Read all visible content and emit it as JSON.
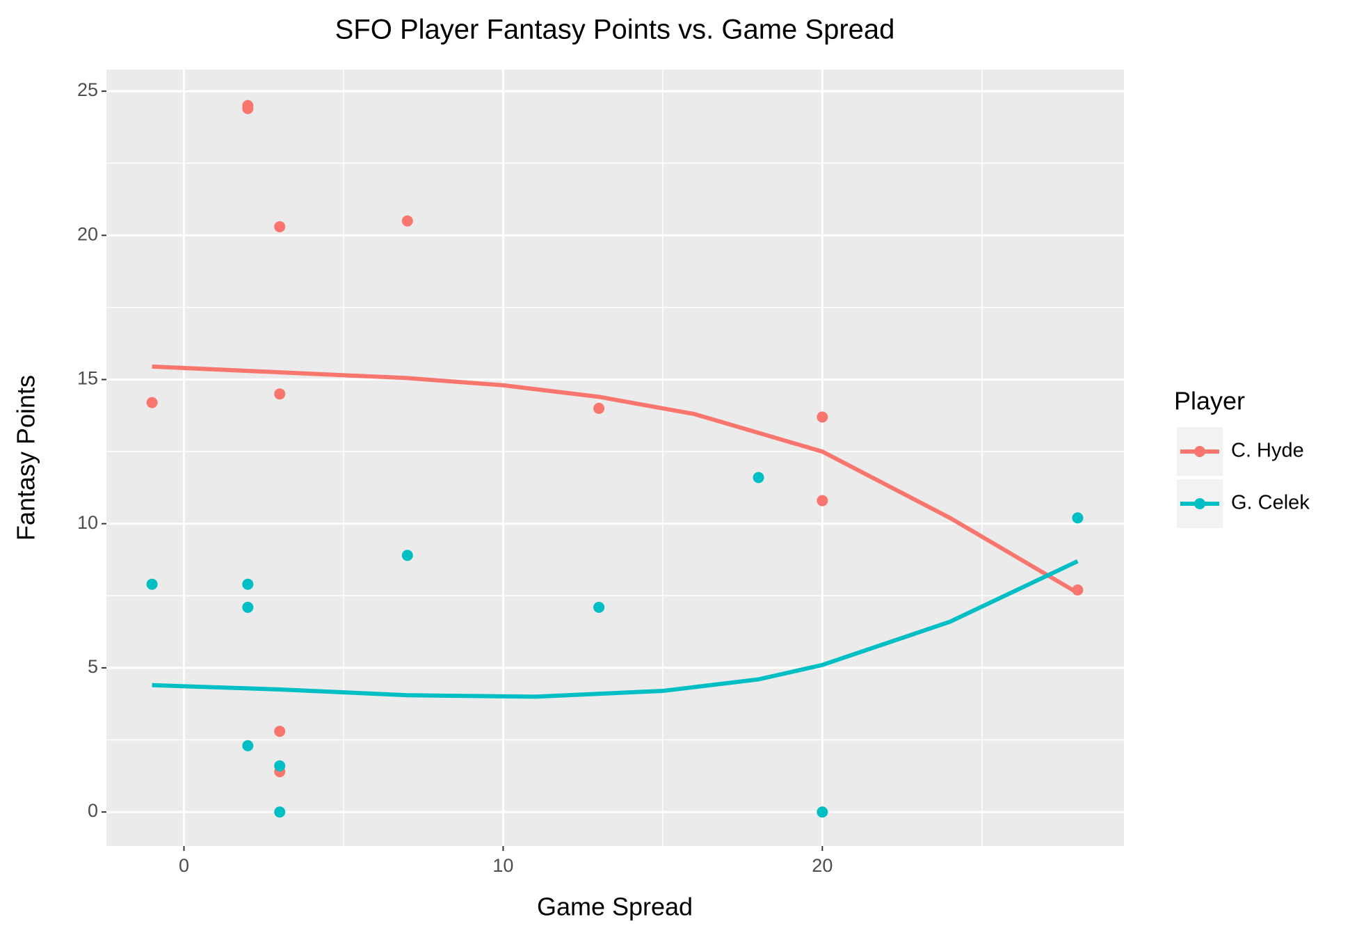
{
  "chart_data": {
    "type": "scatter",
    "title": "SFO Player Fantasy Points vs. Game Spread",
    "x_label": "Game Spread",
    "y_label": "Fantasy Points",
    "legend_title": "Player",
    "xlim": [
      -2.43,
      29.45
    ],
    "ylim": [
      -1.18,
      25.75
    ],
    "xticks": [
      0,
      10,
      20
    ],
    "yticks": [
      0,
      5,
      10,
      15,
      20,
      25
    ],
    "grid": true,
    "series": [
      {
        "name": "C. Hyde",
        "color": "#F8766D",
        "x": [
          -1,
          2,
          2,
          3,
          3,
          3,
          3,
          7,
          13,
          20,
          20,
          28
        ],
        "values": [
          14.2,
          24.5,
          24.4,
          20.3,
          14.5,
          2.8,
          1.4,
          20.5,
          14,
          13.7,
          10.8,
          7.7
        ],
        "trend_x": [
          -1,
          3,
          7,
          10,
          13,
          16,
          20,
          24,
          28
        ],
        "trend_values": [
          15.45,
          15.25,
          15.05,
          14.8,
          14.4,
          13.8,
          12.5,
          10.2,
          7.6
        ]
      },
      {
        "name": "G. Celek",
        "color": "#00BFC4",
        "x": [
          -1,
          2,
          2,
          2,
          3,
          3,
          7,
          13,
          18,
          20,
          28
        ],
        "values": [
          7.9,
          7.9,
          7.1,
          2.3,
          1.6,
          0,
          8.9,
          7.1,
          11.6,
          0,
          10.2
        ],
        "trend_x": [
          -1,
          3,
          7,
          11,
          15,
          18,
          20,
          24,
          28
        ],
        "trend_values": [
          4.4,
          4.25,
          4.05,
          4.0,
          4.2,
          4.6,
          5.1,
          6.6,
          8.7
        ]
      }
    ]
  }
}
